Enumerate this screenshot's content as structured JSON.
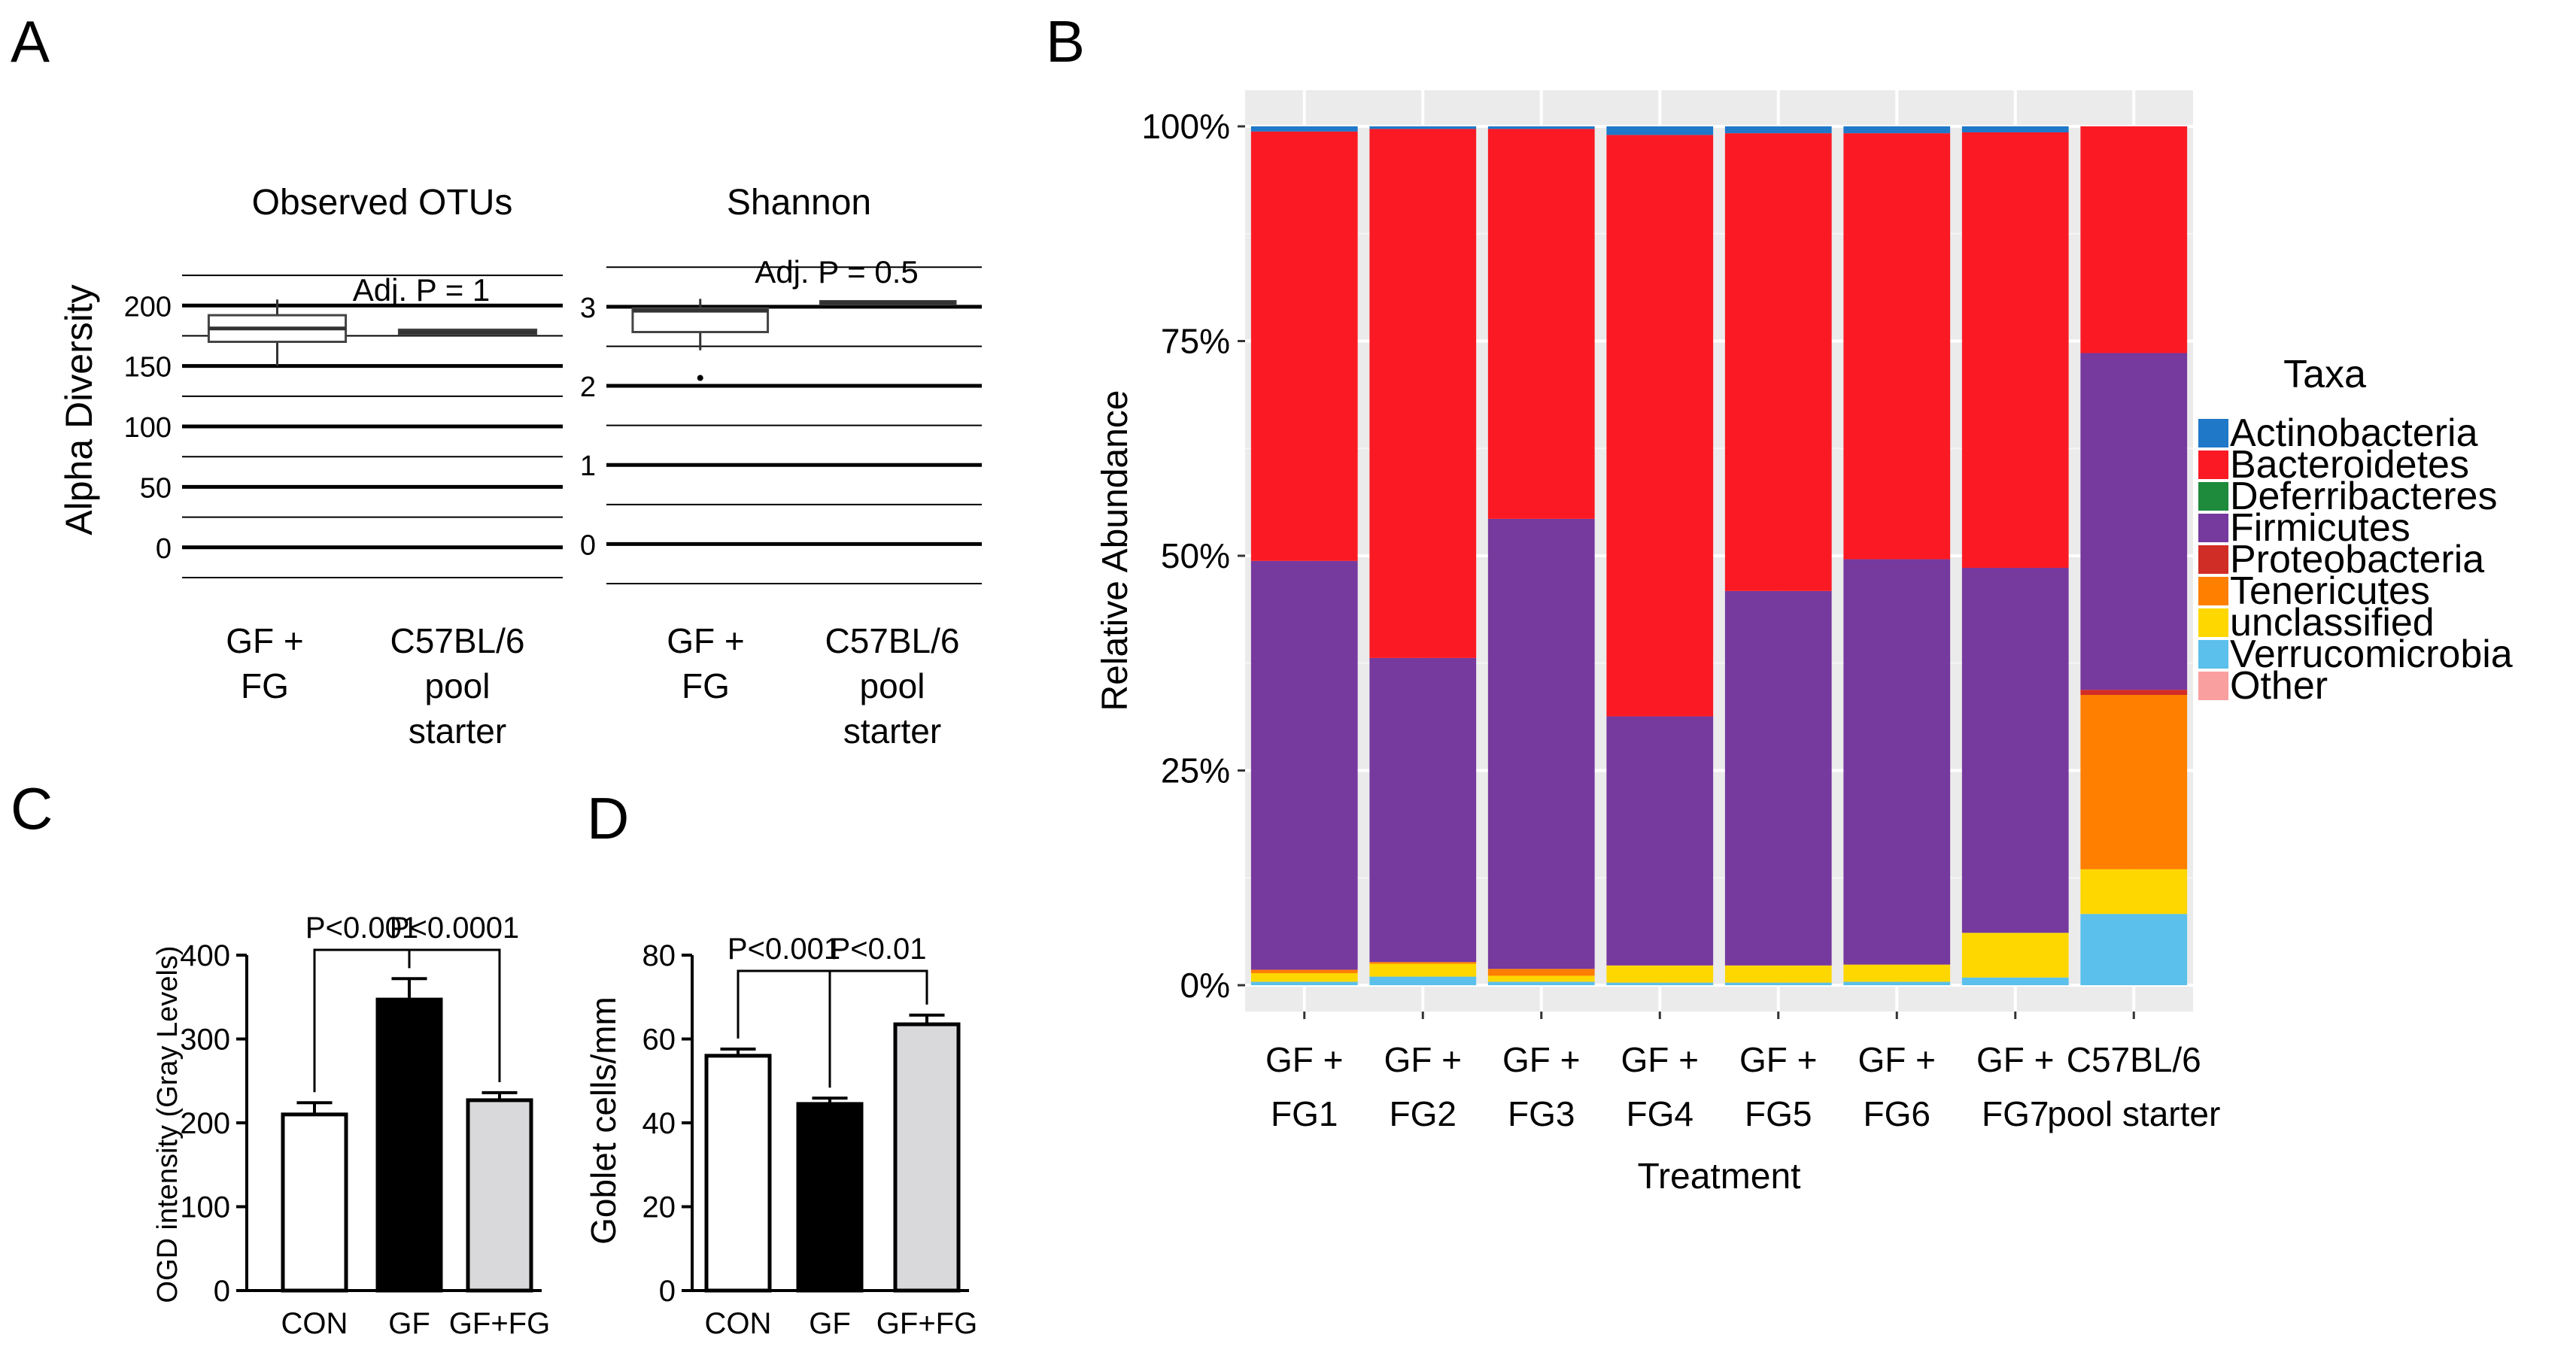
{
  "panels": {
    "A": {
      "label": "A",
      "ylabel": "Alpha Diversity",
      "xlabels": [
        [
          "GF +",
          "FG"
        ],
        [
          "C57BL/6",
          "pool",
          "starter"
        ]
      ]
    },
    "B": {
      "label": "B"
    },
    "C": {
      "label": "C"
    },
    "D": {
      "label": "D"
    }
  },
  "chart_data": [
    {
      "id": "A1",
      "type": "box",
      "title": "Observed OTUs",
      "ylabel": "Alpha Diversity",
      "categories": [
        "GF + FG",
        "C57BL/6 pool starter"
      ],
      "yticks": [
        0,
        50,
        100,
        150,
        200
      ],
      "ylim": [
        -30,
        235
      ],
      "boxes": [
        {
          "q1": 170,
          "median": 181,
          "q3": 192,
          "wlow": 150,
          "whigh": 205
        },
        {
          "q1": 176,
          "median": 178,
          "q3": 180,
          "wlow": 176,
          "whigh": 180
        }
      ],
      "annotation": "Adj. P =  1"
    },
    {
      "id": "A2",
      "type": "box",
      "title": "Shannon",
      "categories": [
        "GF + FG",
        "C57BL/6 pool starter"
      ],
      "yticks": [
        0,
        1,
        2,
        3
      ],
      "ylim": [
        -0.5,
        3.55
      ],
      "boxes": [
        {
          "q1": 2.68,
          "median": 2.95,
          "q3": 2.98,
          "wlow": 2.45,
          "whigh": 3.1,
          "outliers": [
            2.1
          ]
        },
        {
          "q1": 3.03,
          "median": 3.05,
          "q3": 3.07,
          "wlow": 3.03,
          "whigh": 3.07
        }
      ],
      "annotation": "Adj. P =  0.5"
    },
    {
      "id": "B",
      "type": "stacked-bar",
      "xlabel": "Treatment",
      "ylabel": "Relative Abundance",
      "yticks": [
        "0%",
        "25%",
        "50%",
        "75%",
        "100%"
      ],
      "ylim": [
        0,
        100
      ],
      "categories": [
        [
          "GF +",
          "FG1"
        ],
        [
          "GF +",
          "FG2"
        ],
        [
          "GF +",
          "FG3"
        ],
        [
          "GF +",
          "FG4"
        ],
        [
          "GF +",
          "FG5"
        ],
        [
          "GF +",
          "FG6"
        ],
        [
          "GF +",
          "FG7"
        ],
        [
          "C57BL/6",
          "pool starter"
        ]
      ],
      "legend_title": "Taxa",
      "legend_position": "right",
      "series": [
        {
          "name": "Actinobacteria",
          "color": "#1f78c8",
          "values": [
            0.6,
            0.3,
            0.3,
            1.0,
            0.8,
            0.8,
            0.7,
            0
          ]
        },
        {
          "name": "Bacteroidetes",
          "color": "#fb1a24",
          "values": [
            50.0,
            61.6,
            45.4,
            67.7,
            53.3,
            49.6,
            50.7,
            26.4
          ]
        },
        {
          "name": "Deferribacteres",
          "color": "#1e8a3c",
          "values": [
            0,
            0,
            0,
            0,
            0,
            0,
            0,
            0
          ]
        },
        {
          "name": "Firmicutes",
          "color": "#76399e",
          "values": [
            47.6,
            35.4,
            52.4,
            29.0,
            43.6,
            47.2,
            42.5,
            39.2
          ]
        },
        {
          "name": "Proteobacteria",
          "color": "#d12d27",
          "values": [
            0,
            0,
            0,
            0,
            0,
            0,
            0,
            0.6
          ]
        },
        {
          "name": "Tenericutes",
          "color": "#ff7f00",
          "values": [
            0.4,
            0.2,
            0.8,
            0,
            0,
            0,
            0,
            20.3
          ]
        },
        {
          "name": "unclassified",
          "color": "#ffd700",
          "values": [
            1.0,
            1.5,
            0.7,
            2.0,
            2.0,
            2.0,
            5.2,
            5.2
          ]
        },
        {
          "name": "Verrucomicrobia",
          "color": "#5bc0eb",
          "values": [
            0.4,
            1.0,
            0.4,
            0.3,
            0.3,
            0.4,
            0.9,
            8.3
          ]
        },
        {
          "name": "Other",
          "color": "#fa9fa0",
          "values": [
            0,
            0,
            0,
            0,
            0,
            0,
            0,
            0
          ]
        }
      ]
    },
    {
      "id": "C",
      "type": "bar",
      "ylabel": "OGD  intensity (Gray Levels)",
      "categories": [
        "CON",
        "GF",
        "GF+FG"
      ],
      "values": [
        210,
        347,
        227
      ],
      "errors": [
        14,
        25,
        9
      ],
      "fills": [
        "#ffffff",
        "#000000",
        "#d9d9dc"
      ],
      "ylim": [
        0,
        400
      ],
      "yticks": [
        0,
        100,
        200,
        300,
        400
      ],
      "significance": [
        {
          "from": 0,
          "to": 1,
          "label": "P<0.001"
        },
        {
          "from": 1,
          "to": 2,
          "label": "P<0.0001"
        }
      ]
    },
    {
      "id": "D",
      "type": "bar",
      "ylabel": "Goblet cells/mm",
      "categories": [
        "CON",
        "GF",
        "GF+FG"
      ],
      "values": [
        56,
        44.5,
        63.5
      ],
      "errors": [
        1.6,
        1.4,
        2.2
      ],
      "fills": [
        "#ffffff",
        "#000000",
        "#d9d9dc"
      ],
      "ylim": [
        0,
        80
      ],
      "yticks": [
        0,
        20,
        40,
        60,
        80
      ],
      "significance": [
        {
          "from": 0,
          "to": 1,
          "label": "P<0.001"
        },
        {
          "from": 1,
          "to": 2,
          "label": "P<0.01"
        }
      ]
    }
  ]
}
